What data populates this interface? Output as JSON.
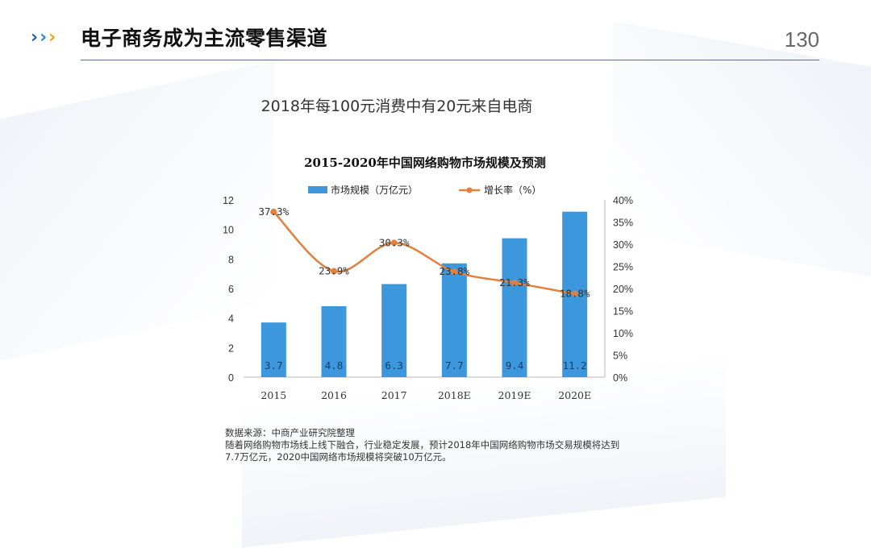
{
  "header": {
    "title": "电子商务成为主流零售渠道",
    "page_number": "130",
    "chevron_colors": [
      "#1f5fa8",
      "#2f86d0",
      "#f0a020"
    ]
  },
  "subtitle": "2018年每100元消费中有20元来自电商",
  "chart_data": {
    "type": "bar",
    "title": "2015-2020年中国网络购物市场规模及预测",
    "categories": [
      "2015",
      "2016",
      "2017",
      "2018E",
      "2019E",
      "2020E"
    ],
    "series": [
      {
        "name": "市场规模（万亿元）",
        "type": "bar",
        "axis": "left",
        "color": "#3d97dc",
        "values": [
          3.7,
          4.8,
          6.3,
          7.7,
          9.4,
          11.2
        ],
        "labels": [
          "3.7",
          "4.8",
          "6.3",
          "7.7",
          "9.4",
          "11.2"
        ]
      },
      {
        "name": "增长率（%）",
        "type": "line",
        "axis": "right",
        "color": "#e3803e",
        "values": [
          37.3,
          23.9,
          30.3,
          23.8,
          21.3,
          18.8
        ],
        "labels": [
          "37.3%",
          "23.9%",
          "30.3%",
          "23.8%",
          "21.3%",
          "18.8%"
        ]
      }
    ],
    "left_axis": {
      "ylim": [
        0,
        12
      ],
      "ticks": [
        "0",
        "2",
        "4",
        "6",
        "8",
        "10",
        "12"
      ]
    },
    "right_axis": {
      "ylim": [
        0,
        40
      ],
      "ticks": [
        "0%",
        "5%",
        "10%",
        "15%",
        "20%",
        "25%",
        "30%",
        "35%",
        "40%"
      ]
    },
    "legend_position": "top",
    "grid": false
  },
  "footnote": {
    "source": "数据来源：中商产业研究院整理",
    "line1": "随着网络购物市场线上线下融合，行业稳定发展，预计2018年中国网络购物市场交易规模将达到",
    "line2": "7.7万亿元，2020中国网络市场规模将突破10万亿元。"
  }
}
